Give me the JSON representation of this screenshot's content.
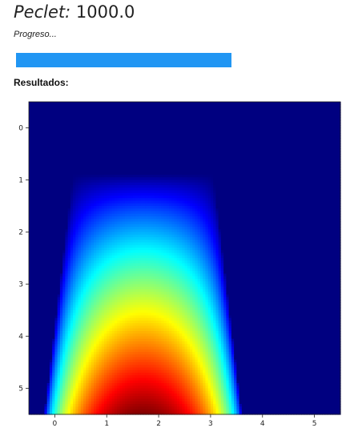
{
  "header": {
    "label": "Peclet:",
    "value": "1000.0"
  },
  "progress": {
    "label": "Progreso...",
    "fraction": 0.675,
    "color": "#2196f3"
  },
  "results": {
    "heading": "Resultados:"
  },
  "chart_data": {
    "type": "heatmap",
    "colormap": "jet",
    "x_ticks": [
      "0",
      "1",
      "2",
      "3",
      "4",
      "5"
    ],
    "y_ticks": [
      "0",
      "1",
      "2",
      "3",
      "4",
      "5"
    ],
    "xlim": [
      -0.5,
      5.5
    ],
    "ylim": [
      5.5,
      -0.5
    ],
    "peak": {
      "x": 1.7,
      "y": 5.5
    }
  }
}
